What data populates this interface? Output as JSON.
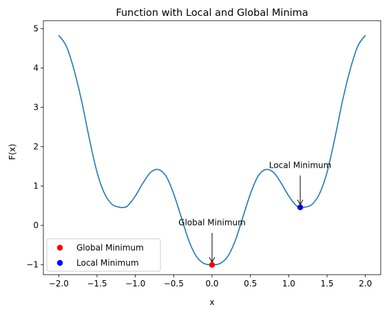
{
  "chart_data": {
    "type": "line",
    "title": "Function with Local and Global Minima",
    "xlabel": "x",
    "ylabel": "F(x)",
    "xlim": [
      -2.2,
      2.2
    ],
    "ylim": [
      -1.25,
      5.2
    ],
    "xticks": [
      -2.0,
      -1.5,
      -1.0,
      -0.5,
      0.0,
      0.5,
      1.0,
      1.5,
      2.0
    ],
    "xtick_labels": [
      "−2.0",
      "−1.5",
      "−1.0",
      "−0.5",
      "0.0",
      "0.5",
      "1.0",
      "1.5",
      "2.0"
    ],
    "yticks": [
      -1,
      0,
      1,
      2,
      3,
      4,
      5
    ],
    "ytick_labels": [
      "−1",
      "0",
      "1",
      "2",
      "3",
      "4",
      "5"
    ],
    "grid": false,
    "series": [
      {
        "kind": "line",
        "color": "#1f77b4",
        "x": [
          -2.0,
          -1.9,
          -1.8,
          -1.7,
          -1.6,
          -1.5,
          -1.4,
          -1.3,
          -1.2,
          -1.15,
          -1.1,
          -1.0,
          -0.9,
          -0.8,
          -0.7,
          -0.6,
          -0.5,
          -0.4,
          -0.3,
          -0.2,
          -0.1,
          0.0,
          0.1,
          0.2,
          0.3,
          0.4,
          0.5,
          0.6,
          0.7,
          0.8,
          0.9,
          1.0,
          1.1,
          1.15,
          1.2,
          1.3,
          1.4,
          1.5,
          1.6,
          1.7,
          1.8,
          1.9,
          2.0
        ],
        "y": [
          4.83,
          4.55,
          3.95,
          3.15,
          2.2,
          1.35,
          0.8,
          0.53,
          0.46,
          0.46,
          0.5,
          0.75,
          1.08,
          1.35,
          1.42,
          1.25,
          0.8,
          0.2,
          -0.4,
          -0.8,
          -0.97,
          -1.0,
          -0.97,
          -0.8,
          -0.4,
          0.2,
          0.8,
          1.25,
          1.42,
          1.35,
          1.08,
          0.75,
          0.5,
          0.46,
          0.46,
          0.53,
          0.8,
          1.35,
          2.2,
          3.15,
          3.95,
          4.55,
          4.83
        ]
      },
      {
        "kind": "scatter",
        "name": "Global Minimum",
        "color": "#ff0000",
        "x": [
          0.0
        ],
        "y": [
          -1.0
        ]
      },
      {
        "kind": "scatter",
        "name": "Local Minimum",
        "color": "#0000ff",
        "x": [
          1.15
        ],
        "y": [
          0.46
        ]
      }
    ],
    "annotations": [
      {
        "text": "Global Minimum",
        "xy": [
          0.0,
          -1.0
        ],
        "xytext": [
          0.0,
          0.0
        ]
      },
      {
        "text": "Local Minimum",
        "xy": [
          1.15,
          0.46
        ],
        "xytext": [
          1.15,
          1.46
        ]
      }
    ],
    "legend": {
      "position": "lower-left",
      "entries": [
        "Global Minimum",
        "Local Minimum"
      ]
    }
  }
}
